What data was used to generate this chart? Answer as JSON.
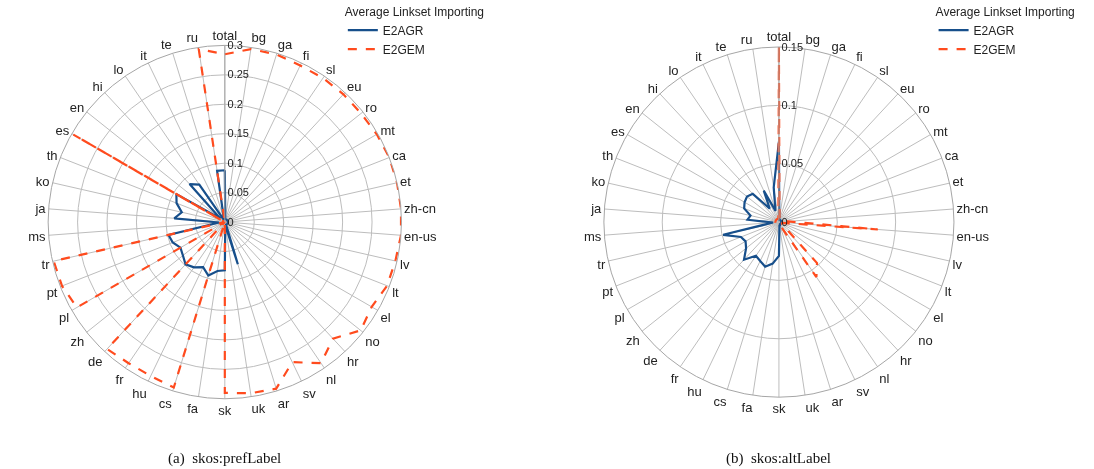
{
  "chart_data": [
    {
      "type": "radar",
      "categories": [
        "total",
        "bg",
        "ga",
        "fi",
        "sl",
        "eu",
        "ro",
        "mt",
        "ca",
        "et",
        "zh-cn",
        "en-us",
        "lv",
        "lt",
        "el",
        "no",
        "hr",
        "nl",
        "sv",
        "ar",
        "uk",
        "sk",
        "fa",
        "cs",
        "hu",
        "fr",
        "de",
        "zh",
        "pl",
        "pt",
        "tr",
        "ms",
        "ja",
        "ko",
        "th",
        "es",
        "en",
        "hi",
        "lo",
        "it",
        "te",
        "ru"
      ],
      "series": [
        {
          "name": "E2AGR",
          "color": "#174f8b",
          "line_style": "solid",
          "values": [
            0.088,
            0.005,
            0.005,
            0.005,
            0.005,
            0.005,
            0.005,
            0.005,
            0.005,
            0.005,
            0.005,
            0.005,
            0.005,
            0.005,
            0.005,
            0.005,
            0.005,
            0.005,
            0.005,
            0.075,
            0.005,
            0.082,
            0.084,
            0.095,
            0.085,
            0.093,
            0.098,
            0.091,
            0.087,
            0.095,
            0.098,
            0.01,
            0.086,
            0.075,
            0.088,
            0.095,
            0.01,
            0.088,
            0.077,
            0.005,
            0.005,
            0.088
          ]
        },
        {
          "name": "E2GEM",
          "color": "#ff4b1e",
          "line_style": "dashed",
          "values": [
            0.285,
            0.297,
            0.298,
            0.295,
            0.296,
            0.296,
            0.296,
            0.298,
            0.3,
            0.3,
            0.3,
            0.3,
            0.297,
            0.296,
            0.288,
            0.295,
            0.27,
            0.29,
            0.264,
            0.296,
            0.294,
            0.29,
            0,
            0.294,
            0.29,
            0.29,
            0.294,
            0,
            0.29,
            0.297,
            0.298,
            0,
            0,
            0,
            0,
            0.297,
            0,
            0,
            0,
            0,
            0,
            0.297
          ]
        }
      ],
      "ylim": [
        0,
        0.3
      ],
      "yticks": [
        0,
        0.05,
        0.1,
        0.15,
        0.2,
        0.25,
        0.3
      ],
      "grid": true,
      "legend": "top right",
      "legend_title": "Average Linkset Importing",
      "annotations": [
        "(a)  skos:prefLabel"
      ]
    },
    {
      "type": "radar",
      "categories": [
        "total",
        "bg",
        "ga",
        "fi",
        "sl",
        "eu",
        "ro",
        "mt",
        "ca",
        "et",
        "zh-cn",
        "en-us",
        "lv",
        "lt",
        "el",
        "no",
        "hr",
        "nl",
        "sv",
        "ar",
        "uk",
        "sk",
        "fa",
        "cs",
        "hu",
        "fr",
        "de",
        "zh",
        "pl",
        "pt",
        "tr",
        "ms",
        "ja",
        "ko",
        "th",
        "es",
        "en",
        "hi",
        "lo",
        "it",
        "te",
        "ru"
      ],
      "series": [
        {
          "name": "E2AGR",
          "color": "#174f8b",
          "line_style": "solid",
          "values": [
            0.069,
            0.002,
            0.002,
            0.002,
            0.002,
            0.002,
            0.002,
            0.002,
            0.002,
            0.002,
            0.002,
            0.002,
            0.002,
            0.002,
            0.002,
            0.002,
            0.002,
            0.002,
            0.002,
            0.003,
            0.003,
            0.029,
            0.036,
            0.04,
            0.037,
            0.035,
            0.044,
            0.036,
            0.033,
            0.035,
            0.049,
            0.005,
            0.027,
            0.025,
            0.032,
            0.034,
            0.035,
            0.033,
            0.014,
            0.03,
            0.01,
            0.03
          ]
        },
        {
          "name": "E2GEM",
          "color": "#ff4b1e",
          "line_style": "dashed",
          "values": [
            0.15,
            0.003,
            0.003,
            0.003,
            0.003,
            0.003,
            0.003,
            0.003,
            0.003,
            0.003,
            0.008,
            0.085,
            0.003,
            0.003,
            0.003,
            0.005,
            0.048,
            0.057,
            0.005,
            0.003,
            0.003,
            0.003,
            0.003,
            0.003,
            0.003,
            0.003,
            0.003,
            0.003,
            0.003,
            0.003,
            0.003,
            0.003,
            0.003,
            0.003,
            0.003,
            0.003,
            0.003,
            0.003,
            0.003,
            0.003,
            0.003,
            0.003
          ]
        }
      ],
      "ylim": [
        0,
        0.15
      ],
      "yticks": [
        0,
        0.05,
        0.1,
        0.15
      ],
      "grid": true,
      "legend": "top right",
      "legend_title": "Average Linkset Importing",
      "annotations": [
        "(b)  skos:altLabel"
      ]
    }
  ]
}
